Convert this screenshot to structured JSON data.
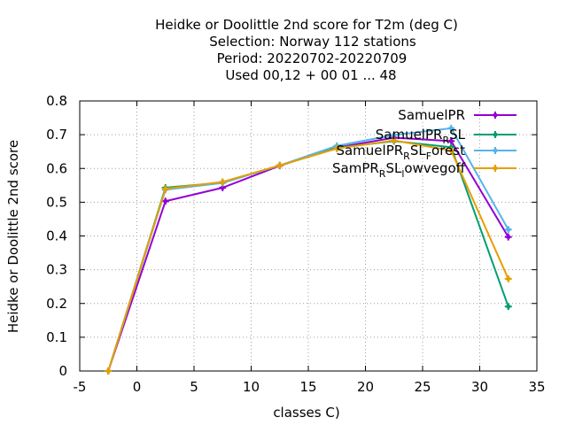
{
  "chart_data": {
    "type": "line",
    "title_lines": [
      "Heidke or Doolittle 2nd score  for T2m (deg C)",
      "Selection: Norway    112 stations",
      "Period: 20220702-20220709",
      "Used  00,12  + 00 01 ... 48"
    ],
    "xlabel": "classes C)",
    "ylabel": "Heidke or Doolittle 2nd score",
    "xlim": [
      -5,
      35
    ],
    "ylim": [
      0,
      0.8
    ],
    "x_ticks": [
      -5,
      0,
      5,
      10,
      15,
      20,
      25,
      30,
      35
    ],
    "y_ticks": [
      0,
      0.1,
      0.2,
      0.3,
      0.4,
      0.5,
      0.6,
      0.7,
      0.8
    ],
    "x_tick_labels": [
      "-5",
      "0",
      "5",
      "10",
      "15",
      "20",
      "25",
      "30",
      "35"
    ],
    "y_tick_labels": [
      "0",
      "0.1",
      "0.2",
      "0.3",
      "0.4",
      "0.5",
      "0.6",
      "0.7",
      "0.8"
    ],
    "grid": true,
    "legend_position": "top-right",
    "x": [
      -2.5,
      2.5,
      7.5,
      12.5,
      17.5,
      22.5,
      27.5,
      32.5
    ],
    "series": [
      {
        "name": "SamuelPR",
        "color": "#9400d3",
        "values": [
          0.0,
          0.503,
          0.543,
          0.608,
          0.662,
          0.691,
          0.681,
          0.397
        ]
      },
      {
        "name": "SamuelPR_R SL",
        "legend_main": "SamuelPR",
        "legend_sub": "R",
        "legend_rest": "SL",
        "color": "#009e73",
        "values": [
          0.0,
          0.543,
          0.558,
          0.609,
          0.661,
          0.681,
          0.663,
          0.191
        ]
      },
      {
        "name": "SamuelPR_R SL_Forest",
        "legend_main": "SamuelPR",
        "legend_sub": "R",
        "legend_rest": "SL",
        "legend_sub2": "F",
        "legend_rest2": "orest",
        "color": "#56b4e9",
        "values": [
          0.0,
          0.537,
          0.557,
          0.609,
          0.667,
          0.699,
          0.719,
          0.419
        ]
      },
      {
        "name": "SamPR_R SL_lowvegoff",
        "legend_main": "SamPR",
        "legend_sub": "R",
        "legend_rest": "SL",
        "legend_sub2": "l",
        "legend_rest2": "owvegoff",
        "color": "#e69f00",
        "values": [
          0.0,
          0.54,
          0.56,
          0.609,
          0.659,
          0.683,
          0.653,
          0.273
        ]
      }
    ],
    "legend_labels": [
      "SamuelPR",
      "SamuelPR",
      "SamuelPR",
      "SamPR"
    ]
  }
}
